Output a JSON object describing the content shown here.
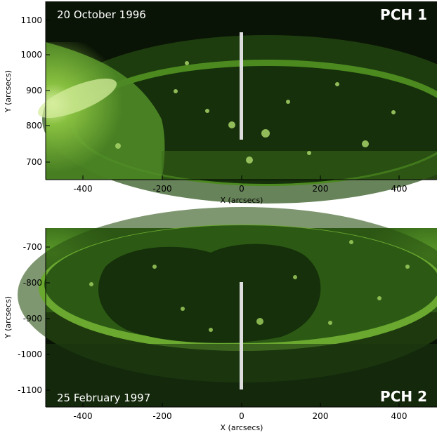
{
  "panels": [
    {
      "date": "20 October 1996",
      "label": "PCH 1",
      "ylabel": "Y (arcsecs)",
      "xlabel": "X (arcsecs)",
      "xticks": [
        "-400",
        "-200",
        "0",
        "200",
        "400"
      ],
      "yticks": [
        "1100",
        "1000",
        "900",
        "800",
        "700"
      ]
    },
    {
      "date": "25 February 1997",
      "label": "PCH 2",
      "ylabel": "Y (arcsecs)",
      "xlabel": "X (arcsecs)",
      "xticks": [
        "-400",
        "-200",
        "0",
        "200",
        "400"
      ],
      "yticks": [
        "-700",
        "-800",
        "-900",
        "-1000",
        "-1100"
      ]
    }
  ],
  "colors": {
    "limb": "#b8e07a",
    "disk": "#1f3a12",
    "background": "#0a1406"
  }
}
